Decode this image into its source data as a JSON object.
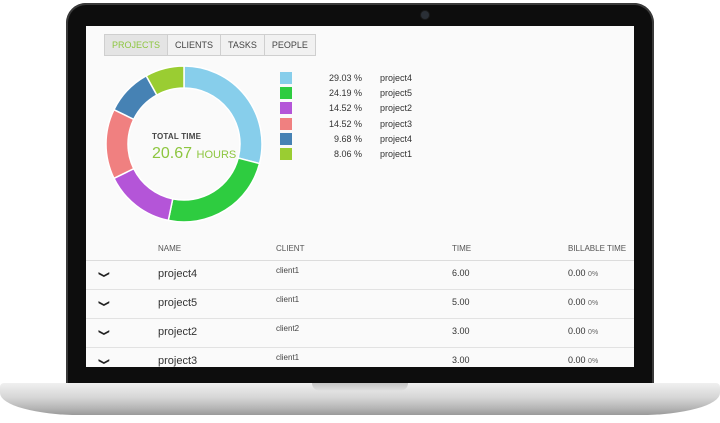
{
  "tabs": [
    "PROJECTS",
    "CLIENTS",
    "TASKS",
    "PEOPLE"
  ],
  "active_tab": 0,
  "chart_data": {
    "type": "pie",
    "donut": true,
    "center_label": "TOTAL TIME",
    "center_value": "20.67",
    "center_unit": "HOURS",
    "slices": [
      {
        "label": "project4",
        "percent": 29.03,
        "percent_text": "29.03 %",
        "color": "#87ceeb"
      },
      {
        "label": "project5",
        "percent": 24.19,
        "percent_text": "24.19 %",
        "color": "#2ecc40"
      },
      {
        "label": "project2",
        "percent": 14.52,
        "percent_text": "14.52 %",
        "color": "#b455d8"
      },
      {
        "label": "project3",
        "percent": 14.52,
        "percent_text": "14.52 %",
        "color": "#f08080"
      },
      {
        "label": "project4",
        "percent": 9.68,
        "percent_text": "9.68 %",
        "color": "#4682b4"
      },
      {
        "label": "project1",
        "percent": 8.06,
        "percent_text": "8.06 %",
        "color": "#9acd32"
      }
    ]
  },
  "table": {
    "headers": {
      "name": "NAME",
      "client": "CLIENT",
      "time": "TIME",
      "billable": "BILLABLE TIME"
    },
    "rows": [
      {
        "name": "project4",
        "client": "client1",
        "time": "6.00",
        "billable": "0.00",
        "billable_pct": "0%"
      },
      {
        "name": "project5",
        "client": "client1",
        "time": "5.00",
        "billable": "0.00",
        "billable_pct": "0%"
      },
      {
        "name": "project2",
        "client": "client2",
        "time": "3.00",
        "billable": "0.00",
        "billable_pct": "0%"
      },
      {
        "name": "project3",
        "client": "client1",
        "time": "3.00",
        "billable": "0.00",
        "billable_pct": "0%"
      }
    ]
  }
}
